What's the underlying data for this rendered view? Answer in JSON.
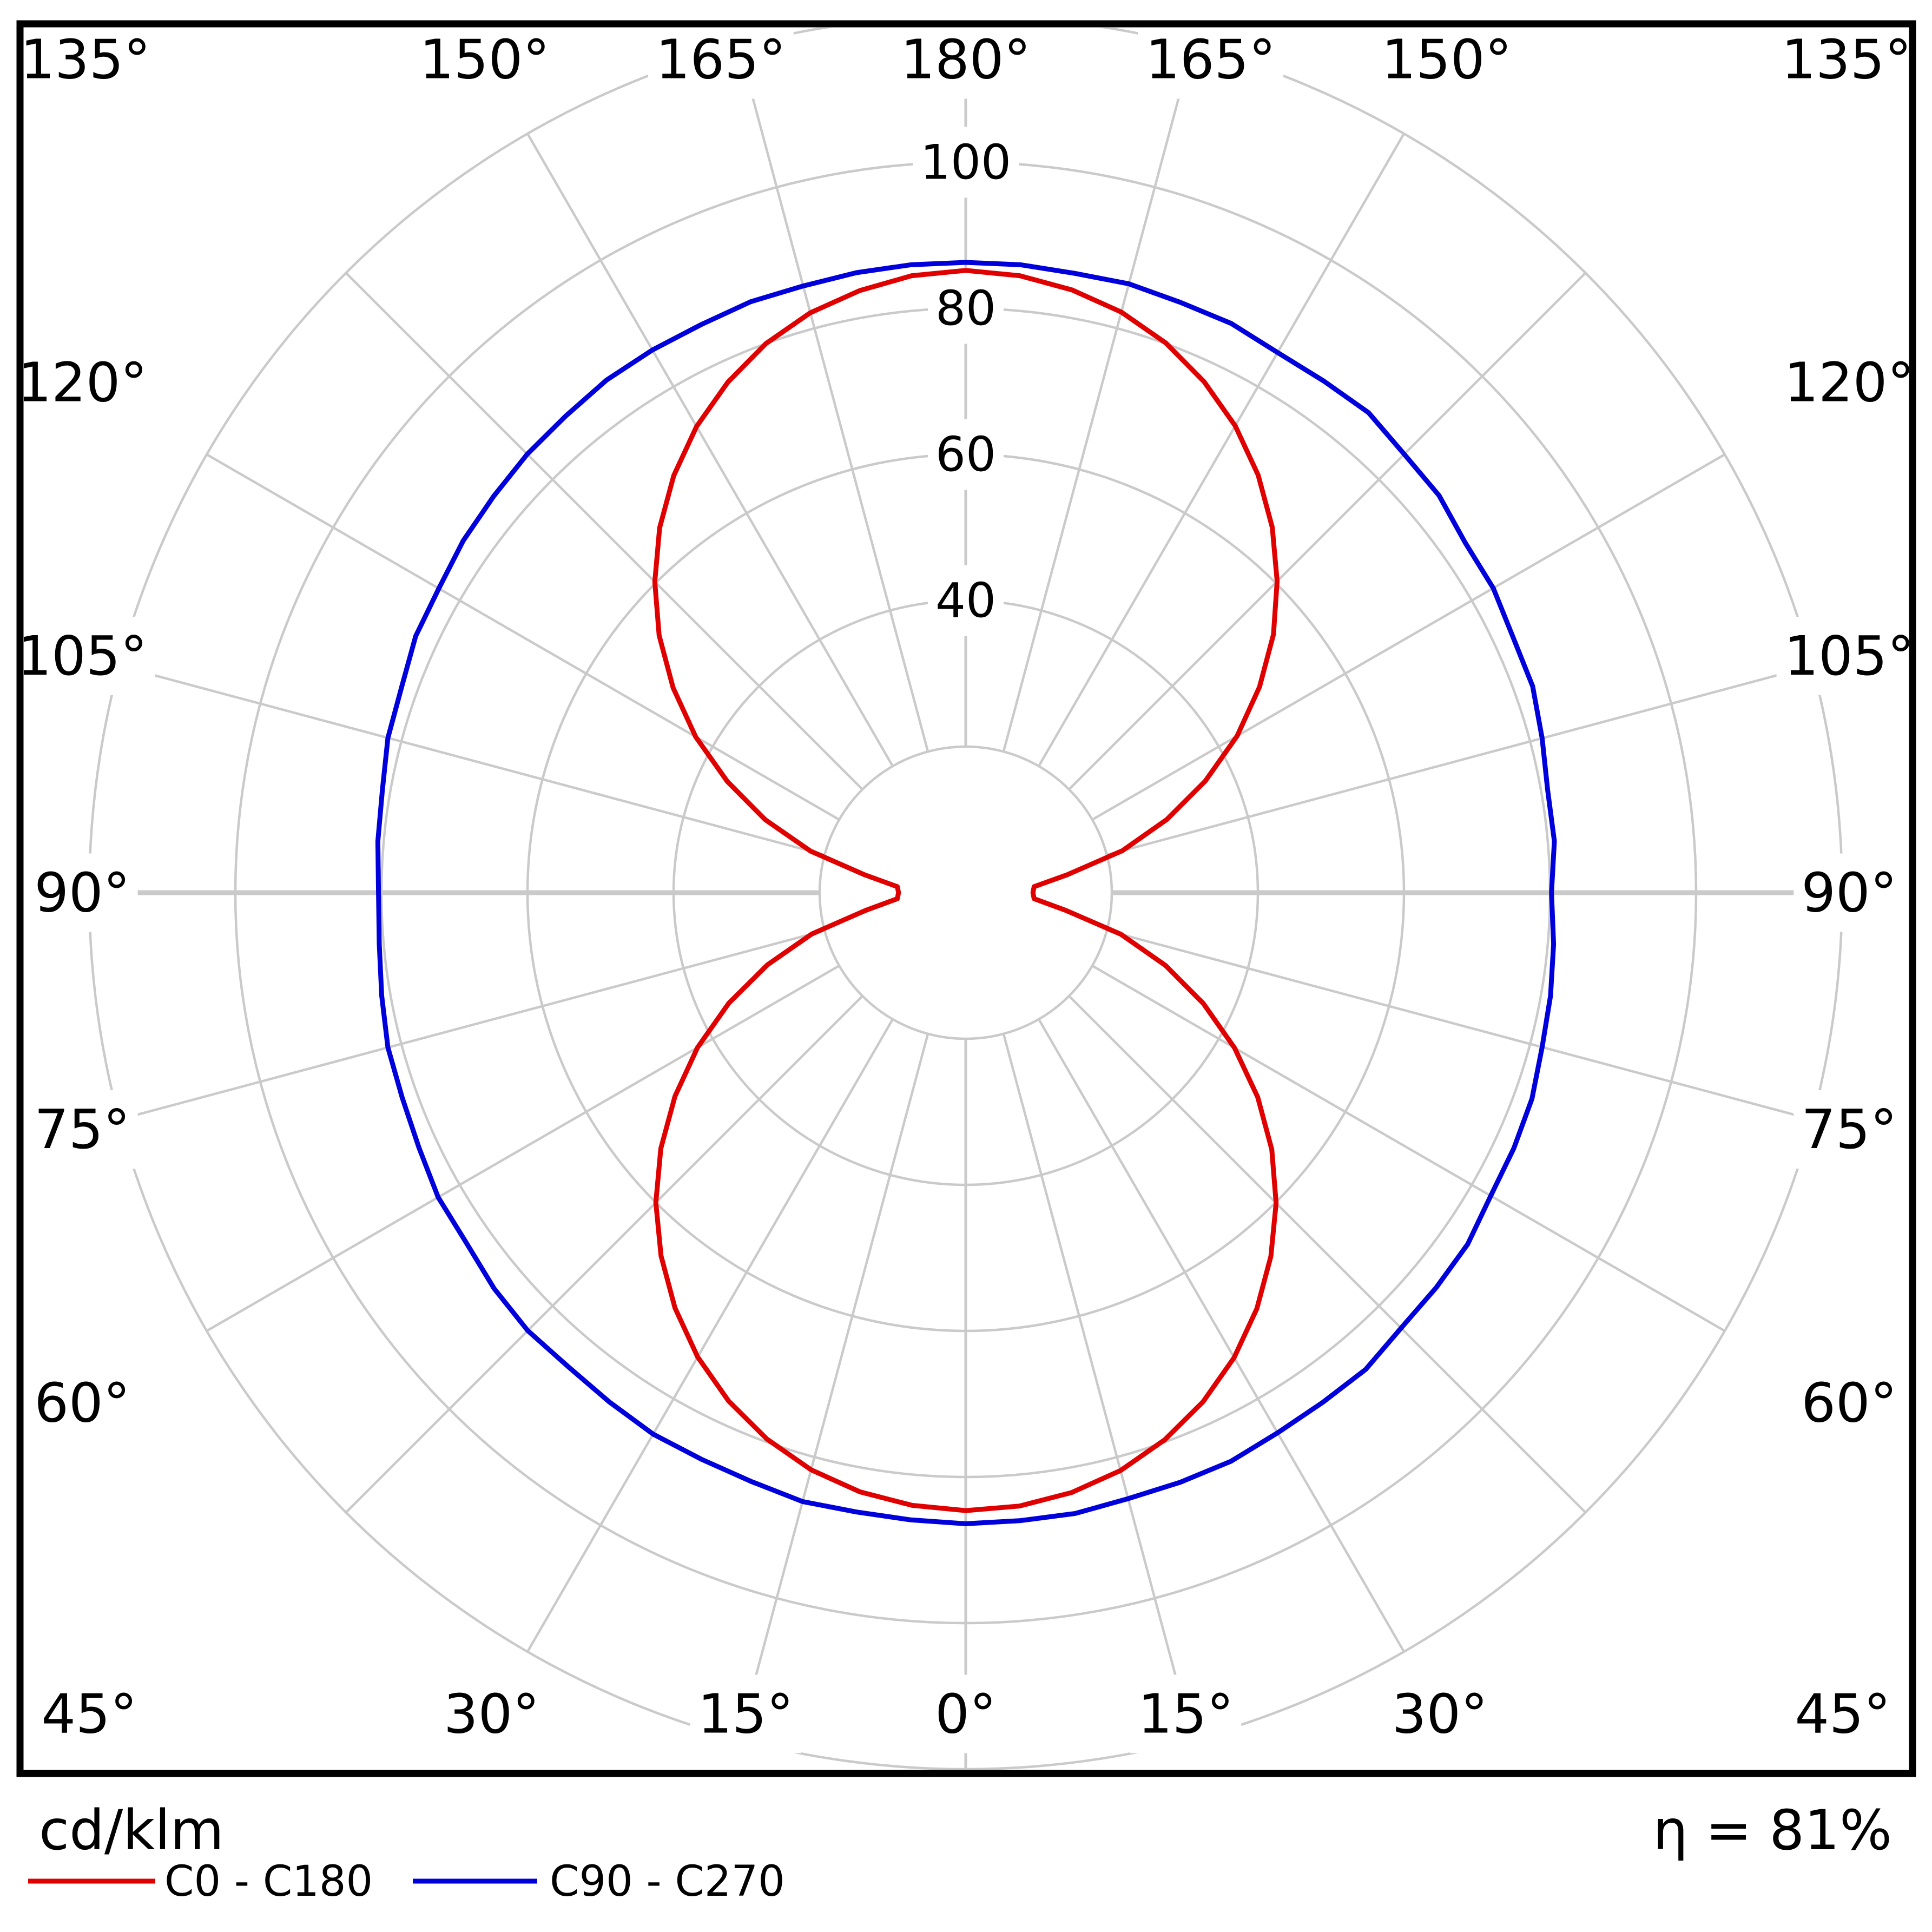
{
  "chart_data": {
    "type": "polar",
    "subtype": "photometric_luminous_intensity_distribution",
    "units_label": "cd/klm",
    "efficiency_text": "η = 81%",
    "angle_step_deg": 15,
    "angle_labels": [
      {
        "deg": 0,
        "text": "0°"
      },
      {
        "deg": 15,
        "text": "15°"
      },
      {
        "deg": 30,
        "text": "30°"
      },
      {
        "deg": 45,
        "text": "45°"
      },
      {
        "deg": 60,
        "text": "60°"
      },
      {
        "deg": 75,
        "text": "75°"
      },
      {
        "deg": 90,
        "text": "90°"
      },
      {
        "deg": 105,
        "text": "105°"
      },
      {
        "deg": 120,
        "text": "120°"
      },
      {
        "deg": 135,
        "text": "135°"
      },
      {
        "deg": 150,
        "text": "150°"
      },
      {
        "deg": 165,
        "text": "165°"
      },
      {
        "deg": 180,
        "text": "180°"
      }
    ],
    "radial": {
      "circle_step": 20,
      "circles": [
        20,
        40,
        60,
        80,
        100,
        120
      ],
      "tick_labels": [
        "40",
        "60",
        "80",
        "100"
      ],
      "tick_values": [
        40,
        60,
        80,
        100
      ],
      "max_plotted": 100
    },
    "grid_color": "#cacaca",
    "frame_color": "#000000",
    "angles_deg": [
      0,
      5,
      10,
      15,
      20,
      25,
      30,
      35,
      40,
      45,
      50,
      55,
      60,
      65,
      70,
      75,
      80,
      85,
      90,
      95,
      100,
      105,
      110,
      115,
      120,
      125,
      130,
      135,
      140,
      145,
      150,
      155,
      160,
      165,
      170,
      175,
      180
    ],
    "series": [
      {
        "name": "C0 - C180",
        "color": "#e00000",
        "right": [
          84.6,
          84.3,
          83.4,
          81.9,
          79.7,
          76.9,
          73.5,
          69.5,
          65.0,
          60.1,
          54.7,
          48.8,
          42.5,
          35.9,
          29.1,
          22.0,
          13.9,
          9.4,
          9.2,
          9.4,
          14.1,
          22.2,
          29.3,
          36.2,
          42.9,
          49.1,
          55.0,
          60.3,
          65.3,
          69.8,
          73.8,
          77.2,
          80.1,
          82.3,
          83.8,
          84.8,
          85.2
        ],
        "left": [
          84.6,
          84.2,
          83.3,
          81.8,
          79.6,
          76.8,
          73.4,
          69.4,
          64.9,
          60.0,
          54.5,
          48.6,
          42.4,
          35.8,
          28.9,
          21.8,
          13.9,
          9.4,
          9.2,
          9.4,
          14.0,
          22.0,
          29.2,
          36.0,
          42.7,
          48.9,
          54.8,
          60.2,
          65.2,
          69.7,
          73.7,
          77.1,
          80.0,
          82.2,
          83.7,
          84.8,
          85.2
        ]
      },
      {
        "name": "C90 - C270",
        "color": "#0000dc",
        "right": [
          86.4,
          86.3,
          86.3,
          85.9,
          85.9,
          85.9,
          85.4,
          85.2,
          85.2,
          84.3,
          84.1,
          83.9,
          83.0,
          82.8,
          82.5,
          81.7,
          81.3,
          80.8,
          80.2,
          80.9,
          80.9,
          81.7,
          82.6,
          82.7,
          83.4,
          83.5,
          84.6,
          84.9,
          85.8,
          85.5,
          85.4,
          86.0,
          86.0,
          86.3,
          86.1,
          86.3,
          86.3
        ],
        "left": [
          86.4,
          86.2,
          86.1,
          86.3,
          85.8,
          85.6,
          85.6,
          85.1,
          84.7,
          84.8,
          84.3,
          83.5,
          83.4,
          82.6,
          82.1,
          81.9,
          81.2,
          80.6,
          80.4,
          80.8,
          81.1,
          81.9,
          82.2,
          83.1,
          83.3,
          84.0,
          84.4,
          84.9,
          85.2,
          85.7,
          85.8,
          85.8,
          86.1,
          86.0,
          86.2,
          86.3,
          86.3
        ]
      }
    ],
    "legend": [
      {
        "label": "C0 - C180"
      },
      {
        "label": "C90 - C270"
      }
    ]
  }
}
